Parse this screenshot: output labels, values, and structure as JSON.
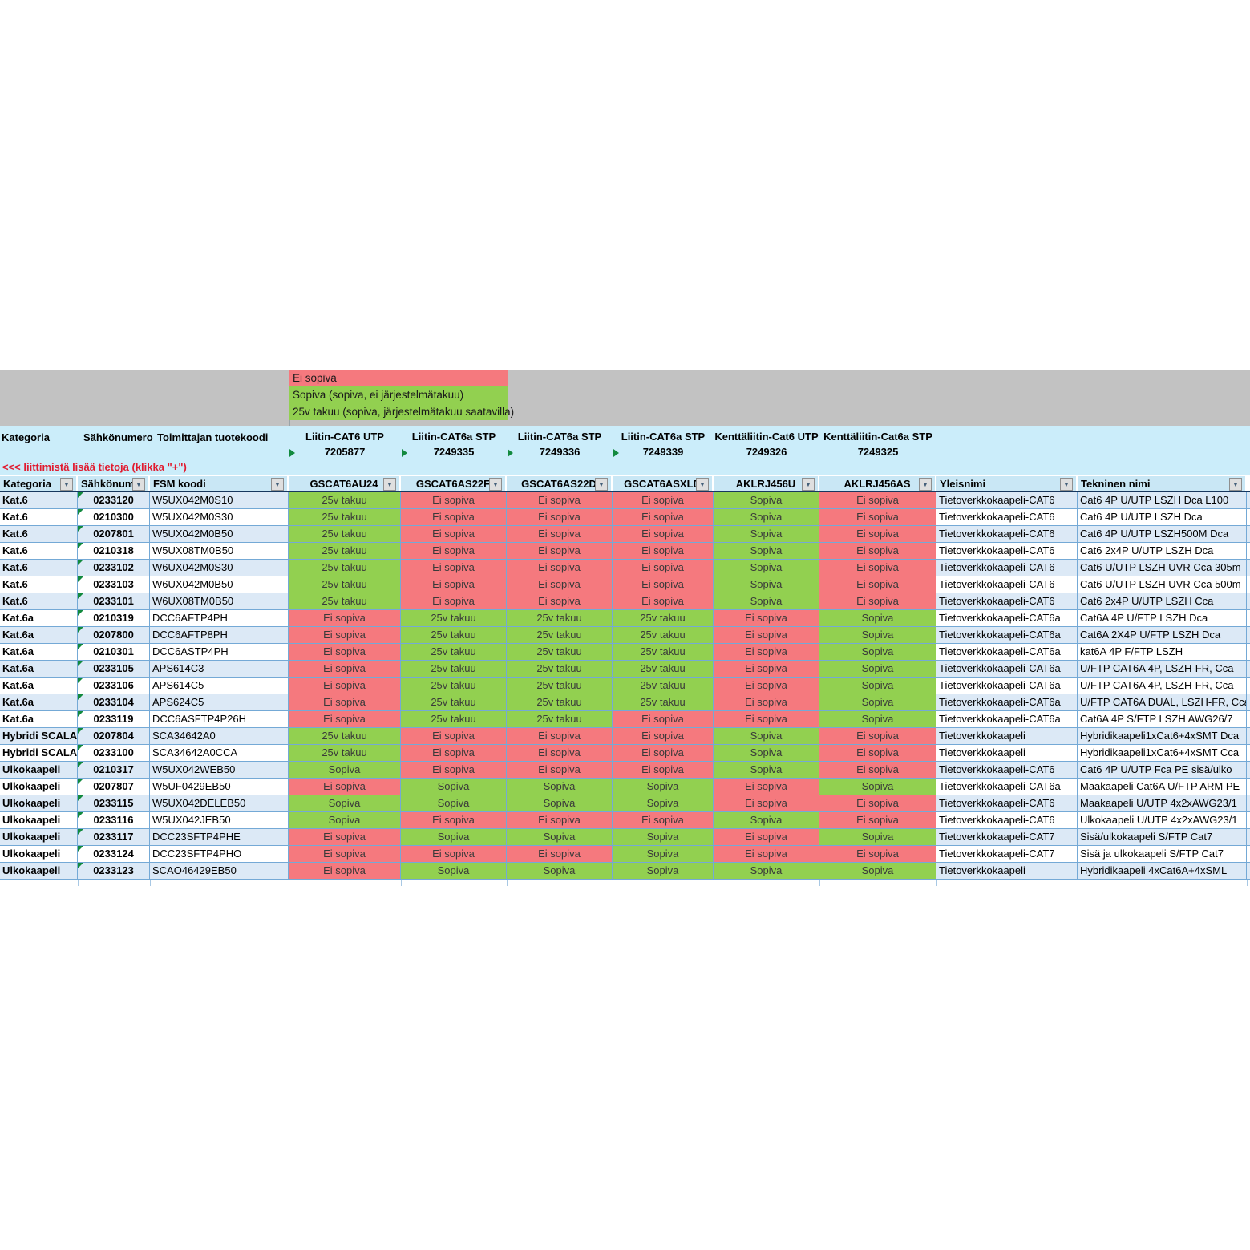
{
  "legend": {
    "items": [
      {
        "label": "Ei sopiva",
        "color": "#F5797E"
      },
      {
        "label": "Sopiva (sopiva, ei järjestelmätakuu)",
        "color": "#92D050"
      },
      {
        "label": "25v takuu (sopiva, järjestelmätakuu saatavilla)",
        "color": "#92D050"
      }
    ]
  },
  "header": {
    "left_titles": [
      "Kategoria",
      "Sähkönumero",
      "Toimittajan tuotekoodi"
    ],
    "note": "<<<  liittimistä lisää tietoja (klikka \"+\")",
    "connector_columns": [
      {
        "name": "Liitin-CAT6 UTP",
        "number": "7205877",
        "flag": true
      },
      {
        "name": "Liitin-CAT6a STP",
        "number": "7249335",
        "flag": true
      },
      {
        "name": "Liitin-CAT6a STP",
        "number": "7249336",
        "flag": true
      },
      {
        "name": "Liitin-CAT6a STP",
        "number": "7249339",
        "flag": true
      },
      {
        "name": "Kenttäliitin-Cat6 UTP",
        "number": "7249326",
        "flag": false
      },
      {
        "name": "Kenttäliitin-Cat6a STP",
        "number": "7249325",
        "flag": false
      }
    ]
  },
  "filter_row": {
    "columns": [
      "Kategoria",
      "Sähkönume",
      "FSM koodi",
      "GSCAT6AU24",
      "GSCAT6AS22F",
      "GSCAT6AS22D",
      "GSCAT6ASXLD",
      "AKLRJ456U",
      "AKLRJ456AS",
      "Yleisnimi",
      "Tekninen nimi"
    ]
  },
  "statuses": {
    "Ei sopiva": "#F5797E",
    "Sopiva": "#92D050",
    "25v takuu": "#92D050"
  },
  "colors": {
    "gray_band": "#C2C2C2",
    "header_band": "#CBEDFA",
    "filter_cell": "#C9E7F5",
    "row_alt": "#DCE9F6",
    "gridline": "#74A9D6",
    "filter_underline": "#17375E",
    "note_red": "#E11B2F",
    "indicator_green": "#128A3E"
  },
  "rows": [
    {
      "kategoria": "Kat.6",
      "sahkonumero": "0233120",
      "fsm": "W5UX042M0S10",
      "status": [
        "25v takuu",
        "Ei sopiva",
        "Ei sopiva",
        "Ei sopiva",
        "Sopiva",
        "Ei sopiva"
      ],
      "yleisnimi": "Tietoverkkokaapeli-CAT6",
      "tekninen": "Cat6 4P U/UTP LSZH Dca L100"
    },
    {
      "kategoria": "Kat.6",
      "sahkonumero": "0210300",
      "fsm": "W5UX042M0S30",
      "status": [
        "25v takuu",
        "Ei sopiva",
        "Ei sopiva",
        "Ei sopiva",
        "Sopiva",
        "Ei sopiva"
      ],
      "yleisnimi": "Tietoverkkokaapeli-CAT6",
      "tekninen": "Cat6 4P U/UTP LSZH Dca"
    },
    {
      "kategoria": "Kat.6",
      "sahkonumero": "0207801",
      "fsm": "W5UX042M0B50",
      "status": [
        "25v takuu",
        "Ei sopiva",
        "Ei sopiva",
        "Ei sopiva",
        "Sopiva",
        "Ei sopiva"
      ],
      "yleisnimi": "Tietoverkkokaapeli-CAT6",
      "tekninen": "Cat6 4P U/UTP LSZH500M Dca"
    },
    {
      "kategoria": "Kat.6",
      "sahkonumero": "0210318",
      "fsm": "W5UX08TM0B50",
      "status": [
        "25v takuu",
        "Ei sopiva",
        "Ei sopiva",
        "Ei sopiva",
        "Sopiva",
        "Ei sopiva"
      ],
      "yleisnimi": "Tietoverkkokaapeli-CAT6",
      "tekninen": "Cat6 2x4P U/UTP LSZH Dca"
    },
    {
      "kategoria": "Kat.6",
      "sahkonumero": "0233102",
      "fsm": "W6UX042M0S30",
      "status": [
        "25v takuu",
        "Ei sopiva",
        "Ei sopiva",
        "Ei sopiva",
        "Sopiva",
        "Ei sopiva"
      ],
      "yleisnimi": "Tietoverkkokaapeli-CAT6",
      "tekninen": "Cat6 U/UTP LSZH UVR Cca 305m"
    },
    {
      "kategoria": "Kat.6",
      "sahkonumero": "0233103",
      "fsm": "W6UX042M0B50",
      "status": [
        "25v takuu",
        "Ei sopiva",
        "Ei sopiva",
        "Ei sopiva",
        "Sopiva",
        "Ei sopiva"
      ],
      "yleisnimi": "Tietoverkkokaapeli-CAT6",
      "tekninen": "Cat6 U/UTP LSZH UVR Cca 500m"
    },
    {
      "kategoria": "Kat.6",
      "sahkonumero": "0233101",
      "fsm": "W6UX08TM0B50",
      "status": [
        "25v takuu",
        "Ei sopiva",
        "Ei sopiva",
        "Ei sopiva",
        "Sopiva",
        "Ei sopiva"
      ],
      "yleisnimi": "Tietoverkkokaapeli-CAT6",
      "tekninen": "Cat6 2x4P U/UTP LSZH Cca"
    },
    {
      "kategoria": "Kat.6a",
      "sahkonumero": "0210319",
      "fsm": "DCC6AFTP4PH",
      "status": [
        "Ei sopiva",
        "25v takuu",
        "25v takuu",
        "25v takuu",
        "Ei sopiva",
        "Sopiva"
      ],
      "yleisnimi": "Tietoverkkokaapeli-CAT6a",
      "tekninen": "Cat6A 4P U/FTP LSZH Dca"
    },
    {
      "kategoria": "Kat.6a",
      "sahkonumero": "0207800",
      "fsm": "DCC6AFTP8PH",
      "status": [
        "Ei sopiva",
        "25v takuu",
        "25v takuu",
        "25v takuu",
        "Ei sopiva",
        "Sopiva"
      ],
      "yleisnimi": "Tietoverkkokaapeli-CAT6a",
      "tekninen": "Cat6A 2X4P U/FTP LSZH Dca"
    },
    {
      "kategoria": "Kat.6a",
      "sahkonumero": "0210301",
      "fsm": "DCC6ASTP4PH",
      "status": [
        "Ei sopiva",
        "25v takuu",
        "25v takuu",
        "25v takuu",
        "Ei sopiva",
        "Sopiva"
      ],
      "yleisnimi": "Tietoverkkokaapeli-CAT6a",
      "tekninen": "kat6A 4P F/FTP LSZH"
    },
    {
      "kategoria": "Kat.6a",
      "sahkonumero": "0233105",
      "fsm": "APS614C3",
      "status": [
        "Ei sopiva",
        "25v takuu",
        "25v takuu",
        "25v takuu",
        "Ei sopiva",
        "Sopiva"
      ],
      "yleisnimi": "Tietoverkkokaapeli-CAT6a",
      "tekninen": "U/FTP CAT6A 4P, LSZH-FR, Cca"
    },
    {
      "kategoria": "Kat.6a",
      "sahkonumero": "0233106",
      "fsm": "APS614C5",
      "status": [
        "Ei sopiva",
        "25v takuu",
        "25v takuu",
        "25v takuu",
        "Ei sopiva",
        "Sopiva"
      ],
      "yleisnimi": "Tietoverkkokaapeli-CAT6a",
      "tekninen": "U/FTP CAT6A 4P, LSZH-FR, Cca"
    },
    {
      "kategoria": "Kat.6a",
      "sahkonumero": "0233104",
      "fsm": "APS624C5",
      "status": [
        "Ei sopiva",
        "25v takuu",
        "25v takuu",
        "25v takuu",
        "Ei sopiva",
        "Sopiva"
      ],
      "yleisnimi": "Tietoverkkokaapeli-CAT6a",
      "tekninen": "U/FTP CAT6A DUAL, LSZH-FR, Cca"
    },
    {
      "kategoria": "Kat.6a",
      "sahkonumero": "0233119",
      "fsm": "DCC6ASFTP4P26H",
      "status": [
        "Ei sopiva",
        "25v takuu",
        "25v takuu",
        "Ei sopiva",
        "Ei sopiva",
        "Sopiva"
      ],
      "yleisnimi": "Tietoverkkokaapeli-CAT6a",
      "tekninen": "Cat6A 4P S/FTP LSZH AWG26/7"
    },
    {
      "kategoria": "Hybridi SCALA",
      "sahkonumero": "0207804",
      "fsm": "SCA34642A0",
      "status": [
        "25v takuu",
        "Ei sopiva",
        "Ei sopiva",
        "Ei sopiva",
        "Sopiva",
        "Ei sopiva"
      ],
      "yleisnimi": "Tietoverkkokaapeli",
      "tekninen": "Hybridikaapeli1xCat6+4xSMT Dca"
    },
    {
      "kategoria": "Hybridi SCALA",
      "sahkonumero": "0233100",
      "fsm": "SCA34642A0CCA",
      "status": [
        "25v takuu",
        "Ei sopiva",
        "Ei sopiva",
        "Ei sopiva",
        "Sopiva",
        "Ei sopiva"
      ],
      "yleisnimi": "Tietoverkkokaapeli",
      "tekninen": "Hybridikaapeli1xCat6+4xSMT Cca"
    },
    {
      "kategoria": "Ulkokaapeli",
      "sahkonumero": "0210317",
      "fsm": "W5UX042WEB50",
      "status": [
        "Sopiva",
        "Ei sopiva",
        "Ei sopiva",
        "Ei sopiva",
        "Sopiva",
        "Ei sopiva"
      ],
      "yleisnimi": "Tietoverkkokaapeli-CAT6",
      "tekninen": "Cat6 4P U/UTP Fca PE sisä/ulko"
    },
    {
      "kategoria": "Ulkokaapeli",
      "sahkonumero": "0207807",
      "fsm": "W5UF0429EB50",
      "status": [
        "Ei sopiva",
        "Sopiva",
        "Sopiva",
        "Sopiva",
        "Ei sopiva",
        "Sopiva"
      ],
      "yleisnimi": "Tietoverkkokaapeli-CAT6a",
      "tekninen": "Maakaapeli Cat6A U/FTP ARM PE"
    },
    {
      "kategoria": "Ulkokaapeli",
      "sahkonumero": "0233115",
      "fsm": "W5UX042DELEB50",
      "status": [
        "Sopiva",
        "Sopiva",
        "Sopiva",
        "Sopiva",
        "Ei sopiva",
        "Ei sopiva"
      ],
      "yleisnimi": "Tietoverkkokaapeli-CAT6",
      "tekninen": "Maakaapeli U/UTP 4x2xAWG23/1"
    },
    {
      "kategoria": "Ulkokaapeli",
      "sahkonumero": "0233116",
      "fsm": "W5UX042JEB50",
      "status": [
        "Sopiva",
        "Ei sopiva",
        "Ei sopiva",
        "Ei sopiva",
        "Sopiva",
        "Ei sopiva"
      ],
      "yleisnimi": "Tietoverkkokaapeli-CAT6",
      "tekninen": "Ulkokaapeli U/UTP 4x2xAWG23/1"
    },
    {
      "kategoria": "Ulkokaapeli",
      "sahkonumero": "0233117",
      "fsm": "DCC23SFTP4PHE",
      "status": [
        "Ei sopiva",
        "Sopiva",
        "Sopiva",
        "Sopiva",
        "Ei sopiva",
        "Sopiva"
      ],
      "yleisnimi": "Tietoverkkokaapeli-CAT7",
      "tekninen": "Sisä/ulkokaapeli S/FTP Cat7"
    },
    {
      "kategoria": "Ulkokaapeli",
      "sahkonumero": "0233124",
      "fsm": "DCC23SFTP4PHO",
      "status": [
        "Ei sopiva",
        "Ei sopiva",
        "Ei sopiva",
        "Sopiva",
        "Ei sopiva",
        "Ei sopiva"
      ],
      "yleisnimi": "Tietoverkkokaapeli-CAT7",
      "tekninen": "Sisä ja ulkokaapeli S/FTP Cat7"
    },
    {
      "kategoria": "Ulkokaapeli",
      "sahkonumero": "0233123",
      "fsm": "SCAO46429EB50",
      "status": [
        "Ei sopiva",
        "Sopiva",
        "Sopiva",
        "Sopiva",
        "Sopiva",
        "Sopiva"
      ],
      "yleisnimi": "Tietoverkkokaapeli",
      "tekninen": "Hybridikaapeli 4xCat6A+4xSML"
    }
  ]
}
